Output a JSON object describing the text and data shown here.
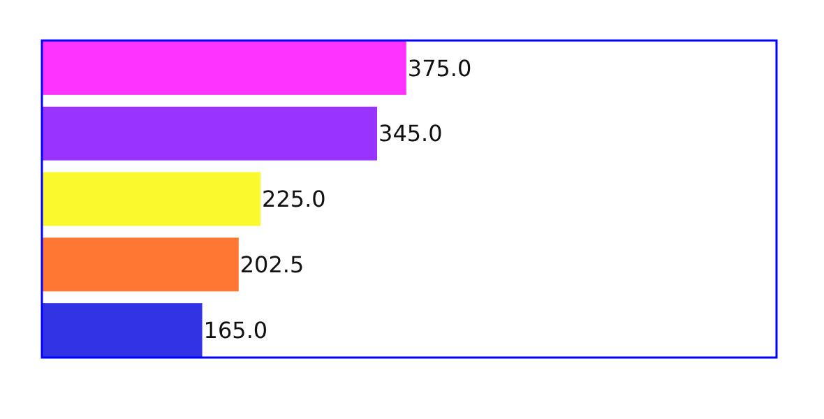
{
  "chart_data": {
    "type": "bar",
    "orientation": "horizontal",
    "categories": [
      null,
      null,
      null,
      null,
      null
    ],
    "values": [
      375,
      345,
      225,
      202.5,
      165
    ],
    "colors": [
      "#ff33ff",
      "#9933ff",
      "#f9f92e",
      "#ff7733",
      "#3333e6"
    ],
    "value_labels": [
      "375.0",
      "345.0",
      "225.0",
      "202.5",
      "165.0"
    ]
  }
}
